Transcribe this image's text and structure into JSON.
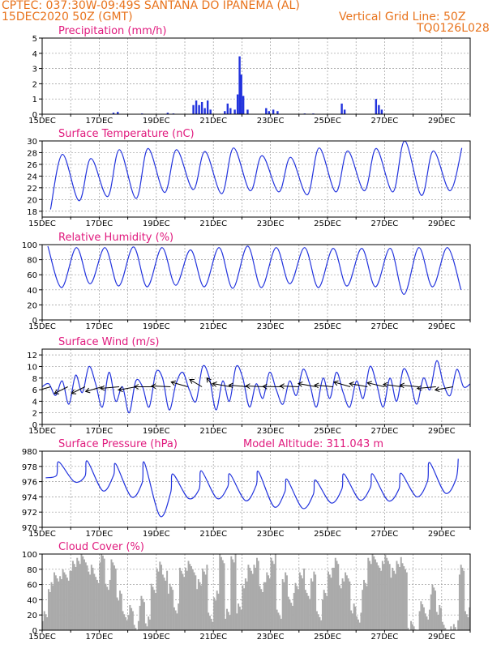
{
  "header": {
    "line1": "CPTEC:   037:30W-09:49S   SANTANA DO IPANEMA (AL)",
    "line2": "15DEC2020 50Z (GMT)",
    "grid_note": "Vertical Grid Line: 50Z",
    "code": "TQ0126L028"
  },
  "colors": {
    "line": "#2233dd",
    "bar": "#2233dd",
    "cloud": "#aaaaaa",
    "title": "#e0197d",
    "header": "#e8731c",
    "grid": "#999999"
  },
  "chart_data": [
    {
      "id": "precip",
      "type": "bar",
      "title": "Precipitation (mm/h)",
      "ylim": [
        0,
        5
      ],
      "yticks": [
        0,
        1,
        2,
        3,
        4,
        5
      ],
      "xlim": [
        15,
        30
      ],
      "xtick_values": [
        15,
        17,
        19,
        21,
        23,
        25,
        27,
        29
      ],
      "xtick_labels": [
        "15DEC",
        "17DEC",
        "19DEC",
        "21DEC",
        "23DEC",
        "25DEC",
        "27DEC",
        "29DEC"
      ],
      "points": [
        [
          17.5,
          0.1
        ],
        [
          17.65,
          0.15
        ],
        [
          18.5,
          0.05
        ],
        [
          19.4,
          0.1
        ],
        [
          19.6,
          0.05
        ],
        [
          20.3,
          0.6
        ],
        [
          20.4,
          0.9
        ],
        [
          20.5,
          0.6
        ],
        [
          20.6,
          0.8
        ],
        [
          20.7,
          0.4
        ],
        [
          20.8,
          0.9
        ],
        [
          20.9,
          0.3
        ],
        [
          21.4,
          0.2
        ],
        [
          21.5,
          0.7
        ],
        [
          21.6,
          0.4
        ],
        [
          21.75,
          0.3
        ],
        [
          21.85,
          1.3
        ],
        [
          21.92,
          3.8
        ],
        [
          21.98,
          2.6
        ],
        [
          22.05,
          1.2
        ],
        [
          22.2,
          0.3
        ],
        [
          22.85,
          0.4
        ],
        [
          22.95,
          0.2
        ],
        [
          23.1,
          0.3
        ],
        [
          23.25,
          0.2
        ],
        [
          24.2,
          0.05
        ],
        [
          24.5,
          0.05
        ],
        [
          25.5,
          0.7
        ],
        [
          25.6,
          0.3
        ],
        [
          26.7,
          1.0
        ],
        [
          26.8,
          0.6
        ],
        [
          26.9,
          0.3
        ]
      ],
      "grid": true
    },
    {
      "id": "temp",
      "type": "line",
      "title": "Surface Temperature (nC)",
      "ylim": [
        17,
        30
      ],
      "yticks": [
        18,
        20,
        22,
        24,
        26,
        28,
        30
      ],
      "xlim": [
        15,
        30
      ],
      "xtick_values": [
        15,
        17,
        19,
        21,
        23,
        25,
        27,
        29
      ],
      "xtick_labels": [
        "15DEC",
        "17DEC",
        "19DEC",
        "21DEC",
        "23DEC",
        "25DEC",
        "27DEC",
        "29DEC"
      ],
      "daily": [
        {
          "min": 18.3,
          "max": 27.7
        },
        {
          "min": 19.8,
          "max": 27.0
        },
        {
          "min": 20.5,
          "max": 28.5
        },
        {
          "min": 20.2,
          "max": 28.7
        },
        {
          "min": 21.2,
          "max": 28.5
        },
        {
          "min": 21.7,
          "max": 28.2
        },
        {
          "min": 21.0,
          "max": 28.8
        },
        {
          "min": 21.5,
          "max": 27.5
        },
        {
          "min": 21.3,
          "max": 27.2
        },
        {
          "min": 20.8,
          "max": 28.8
        },
        {
          "min": 21.3,
          "max": 28.3
        },
        {
          "min": 21.5,
          "max": 28.7
        },
        {
          "min": 21.3,
          "max": 30.0
        },
        {
          "min": 20.7,
          "max": 28.3
        },
        {
          "min": 21.5,
          "max": 28.8
        }
      ],
      "grid": true
    },
    {
      "id": "rh",
      "type": "line",
      "title": "Relative Humidity (%)",
      "ylim": [
        0,
        100
      ],
      "yticks": [
        0,
        20,
        40,
        60,
        80,
        100
      ],
      "xlim": [
        15,
        30
      ],
      "xtick_values": [
        15,
        17,
        19,
        21,
        23,
        25,
        27,
        29
      ],
      "xtick_labels": [
        "15DEC",
        "17DEC",
        "19DEC",
        "21DEC",
        "23DEC",
        "25DEC",
        "27DEC",
        "29DEC"
      ],
      "daily": [
        {
          "min": 43,
          "max": 98
        },
        {
          "min": 48,
          "max": 96
        },
        {
          "min": 45,
          "max": 96
        },
        {
          "min": 44,
          "max": 97
        },
        {
          "min": 46,
          "max": 96
        },
        {
          "min": 44,
          "max": 93
        },
        {
          "min": 42,
          "max": 96
        },
        {
          "min": 43,
          "max": 98
        },
        {
          "min": 48,
          "max": 96
        },
        {
          "min": 43,
          "max": 96
        },
        {
          "min": 45,
          "max": 95
        },
        {
          "min": 44,
          "max": 95
        },
        {
          "min": 34,
          "max": 95
        },
        {
          "min": 44,
          "max": 96
        },
        {
          "min": 40,
          "max": 96
        }
      ],
      "grid": true
    },
    {
      "id": "wind",
      "type": "line",
      "title": "Surface Wind (m/s)",
      "ylim": [
        0,
        13
      ],
      "yticks": [
        0,
        2,
        4,
        6,
        8,
        10,
        12
      ],
      "xlim": [
        15,
        30
      ],
      "xtick_values": [
        15,
        17,
        19,
        21,
        23,
        25,
        27,
        29
      ],
      "xtick_labels": [
        "15DEC",
        "17DEC",
        "19DEC",
        "21DEC",
        "23DEC",
        "25DEC",
        "27DEC",
        "29DEC"
      ],
      "speed": [
        6.5,
        7.0,
        5.0,
        7.5,
        3.5,
        8.5,
        5.5,
        10.0,
        7.0,
        3.0,
        9.0,
        4.0,
        6.5,
        2.0,
        7.5,
        6.5,
        3.0,
        9.0,
        8.0,
        2.5,
        7.0,
        9.0,
        6.0,
        4.0,
        10.0,
        8.0,
        2.5,
        7.5,
        4.0,
        10.0,
        8.0,
        3.0,
        7.0,
        4.5,
        9.0,
        6.0,
        3.5,
        7.5,
        5.0,
        9.5,
        7.0,
        3.0,
        8.0,
        4.5,
        9.0,
        5.5,
        3.0,
        7.5,
        4.5,
        10.0,
        7.0,
        3.0,
        8.0,
        4.0,
        9.5,
        7.5,
        3.5,
        8.0,
        6.0,
        11.0,
        7.0,
        5.0,
        9.5,
        6.5,
        7.0
      ],
      "barbs": [
        [
          15.3,
          60
        ],
        [
          15.9,
          45
        ],
        [
          16.5,
          45
        ],
        [
          17.1,
          60
        ],
        [
          17.7,
          80
        ],
        [
          18.3,
          70
        ],
        [
          18.9,
          90
        ],
        [
          19.5,
          95
        ],
        [
          20.1,
          120
        ],
        [
          20.6,
          140
        ],
        [
          21.0,
          160
        ],
        [
          21.6,
          110
        ],
        [
          22.2,
          100
        ],
        [
          22.8,
          95
        ],
        [
          23.4,
          92
        ],
        [
          24.0,
          95
        ],
        [
          24.6,
          110
        ],
        [
          25.2,
          100
        ],
        [
          25.8,
          120
        ],
        [
          26.4,
          110
        ],
        [
          27.0,
          115
        ],
        [
          27.6,
          105
        ],
        [
          28.2,
          100
        ],
        [
          28.8,
          80
        ],
        [
          29.4,
          70
        ]
      ],
      "grid": true
    },
    {
      "id": "pressure",
      "type": "line",
      "title": "Surface Pressure (hPa)",
      "annotation": "Model Altitude: 311.043 m",
      "ylim": [
        970,
        980
      ],
      "yticks": [
        970,
        972,
        974,
        976,
        978,
        980
      ],
      "xlim": [
        15,
        30
      ],
      "xtick_values": [
        15,
        17,
        19,
        21,
        23,
        25,
        27,
        29
      ],
      "xtick_labels": [
        "15DEC",
        "17DEC",
        "19DEC",
        "21DEC",
        "23DEC",
        "25DEC",
        "27DEC",
        "29DEC"
      ],
      "daily": [
        {
          "min": 976.5,
          "max": 978.6,
          "pmin": 976.8
        },
        {
          "min": 976.0,
          "max": 978.7,
          "pmin": 976.7
        },
        {
          "min": 974.8,
          "max": 978.3,
          "pmin": 976.8
        },
        {
          "min": 974.0,
          "max": 978.5,
          "pmin": 975.8
        },
        {
          "min": 971.5,
          "max": 977.0,
          "pmin": 974.5
        },
        {
          "min": 973.8,
          "max": 977.4,
          "pmin": 975.0
        },
        {
          "min": 973.8,
          "max": 977.0,
          "pmin": 975.3
        },
        {
          "min": 973.5,
          "max": 977.3,
          "pmin": 975.5
        },
        {
          "min": 972.7,
          "max": 976.3,
          "pmin": 974.6
        },
        {
          "min": 972.5,
          "max": 976.2,
          "pmin": 974.3
        },
        {
          "min": 973.2,
          "max": 977.0,
          "pmin": 975.0
        },
        {
          "min": 973.6,
          "max": 977.0,
          "pmin": 975.2
        },
        {
          "min": 973.5,
          "max": 977.1,
          "pmin": 975.0
        },
        {
          "min": 974.0,
          "max": 978.5,
          "pmin": 976.0
        },
        {
          "min": 974.5,
          "max": 979.0,
          "pmin": 976.3
        }
      ],
      "grid": true
    },
    {
      "id": "cloud",
      "type": "area",
      "title": "Cloud Cover (%)",
      "ylim": [
        0,
        100
      ],
      "yticks": [
        0,
        20,
        40,
        60,
        80,
        100
      ],
      "xlim": [
        15,
        30
      ],
      "xtick_values": [
        15,
        17,
        19,
        21,
        23,
        25,
        27,
        29
      ],
      "xtick_labels": [
        "15DEC",
        "17DEC",
        "19DEC",
        "21DEC",
        "23DEC",
        "25DEC",
        "27DEC",
        "29DEC"
      ],
      "x": [
        15.0,
        15.2,
        15.4,
        15.6,
        15.8,
        16.0,
        16.2,
        16.4,
        16.6,
        16.8,
        17.0,
        17.2,
        17.4,
        17.6,
        17.8,
        18.0,
        18.2,
        18.4,
        18.6,
        18.8,
        19.0,
        19.2,
        19.4,
        19.6,
        19.8,
        20.0,
        20.2,
        20.4,
        20.6,
        20.8,
        21.0,
        21.2,
        21.4,
        21.6,
        21.8,
        22.0,
        22.2,
        22.4,
        22.6,
        22.8,
        23.0,
        23.2,
        23.4,
        23.6,
        23.8,
        24.0,
        24.2,
        24.4,
        24.6,
        24.8,
        25.0,
        25.2,
        25.4,
        25.6,
        25.8,
        26.0,
        26.2,
        26.4,
        26.6,
        26.8,
        27.0,
        27.2,
        27.4,
        27.6,
        27.8,
        28.0,
        28.2,
        28.4,
        28.6,
        28.8,
        29.0,
        29.2,
        29.4,
        29.6,
        29.8
      ],
      "values": [
        20,
        55,
        70,
        75,
        70,
        85,
        95,
        90,
        80,
        70,
        95,
        60,
        85,
        45,
        20,
        25,
        5,
        40,
        10,
        55,
        85,
        70,
        55,
        30,
        75,
        85,
        80,
        60,
        80,
        15,
        45,
        95,
        20,
        95,
        30,
        60,
        80,
        90,
        55,
        70,
        95,
        20,
        70,
        40,
        55,
        75,
        45,
        70,
        20,
        45,
        75,
        90,
        60,
        70,
        30,
        15,
        60,
        95,
        90,
        85,
        95,
        75,
        90,
        80,
        5,
        0,
        30,
        20,
        55,
        25,
        5,
        0,
        5,
        80,
        25
      ],
      "grid": true
    }
  ]
}
